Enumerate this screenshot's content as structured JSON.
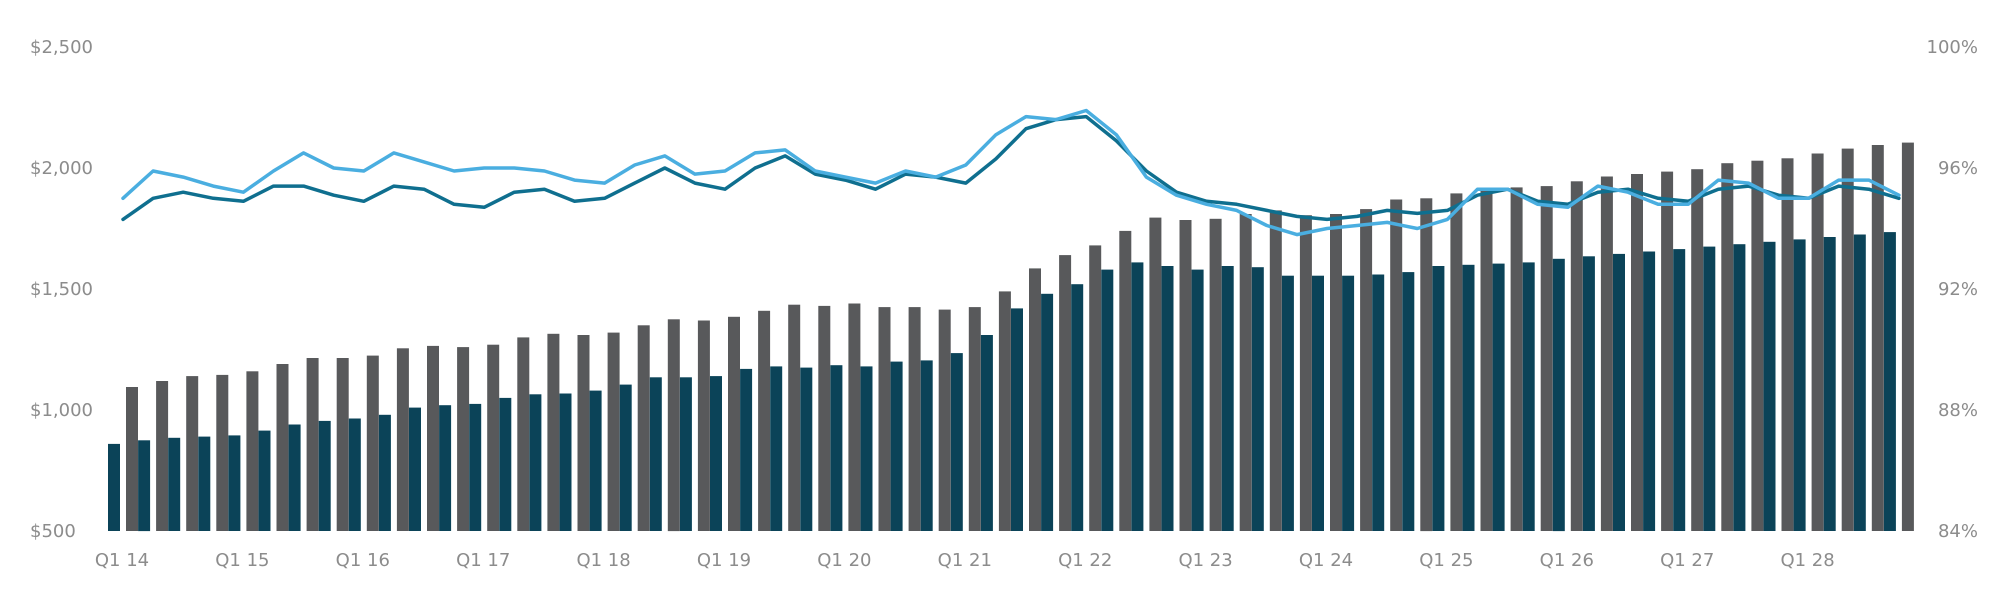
{
  "chart_data": {
    "type": "bar",
    "title": "",
    "xlabel": "",
    "ylabel_left": "",
    "ylabel_right": "",
    "grid": false,
    "legend": "none",
    "y_left": {
      "range": [
        500,
        2500
      ],
      "ticks": [
        "$500",
        "$1,000",
        "$1,500",
        "$2,000",
        "$2,500"
      ],
      "tick_values": [
        500,
        1000,
        1500,
        2000,
        2500
      ]
    },
    "y_right": {
      "range": [
        84,
        100
      ],
      "ticks": [
        "84%",
        "88%",
        "92%",
        "96%",
        "100%"
      ],
      "tick_values": [
        84,
        88,
        92,
        96,
        100
      ]
    },
    "x_tick_labels": [
      {
        "label": "Q1 14",
        "index": 0
      },
      {
        "label": "Q1 15",
        "index": 4
      },
      {
        "label": "Q1 16",
        "index": 8
      },
      {
        "label": "Q1 17",
        "index": 12
      },
      {
        "label": "Q1 18",
        "index": 16
      },
      {
        "label": "Q1 19",
        "index": 20
      },
      {
        "label": "Q1 20",
        "index": 24
      },
      {
        "label": "Q1 21",
        "index": 28
      },
      {
        "label": "Q1 22",
        "index": 32
      },
      {
        "label": "Q1 23",
        "index": 36
      },
      {
        "label": "Q1 24",
        "index": 40
      },
      {
        "label": "Q1 25",
        "index": 44
      },
      {
        "label": "Q1 26",
        "index": 48
      },
      {
        "label": "Q1 27",
        "index": 52
      },
      {
        "label": "Q1 28",
        "index": 56
      }
    ],
    "series": [
      {
        "kind": "bar",
        "axis": "left",
        "color": "#0b4358",
        "values": [
          860,
          875,
          885,
          890,
          895,
          915,
          940,
          955,
          965,
          980,
          1010,
          1020,
          1025,
          1050,
          1065,
          1068,
          1080,
          1105,
          1135,
          1135,
          1140,
          1170,
          1180,
          1175,
          1185,
          1180,
          1200,
          1205,
          1235,
          1310,
          1420,
          1480,
          1520,
          1580,
          1610,
          1595,
          1580,
          1595,
          1590,
          1555,
          1555,
          1555,
          1560,
          1570,
          1595,
          1600,
          1605,
          1610,
          1625,
          1635,
          1645,
          1655,
          1665,
          1675,
          1685,
          1695,
          1705,
          1715,
          1725,
          1735
        ]
      },
      {
        "kind": "bar",
        "axis": "left",
        "color": "#58595b",
        "values": [
          1095,
          1120,
          1140,
          1145,
          1160,
          1190,
          1215,
          1215,
          1225,
          1255,
          1265,
          1260,
          1270,
          1300,
          1315,
          1310,
          1320,
          1350,
          1375,
          1370,
          1385,
          1410,
          1435,
          1430,
          1440,
          1425,
          1425,
          1415,
          1425,
          1490,
          1585,
          1640,
          1680,
          1740,
          1795,
          1785,
          1790,
          1810,
          1825,
          1805,
          1810,
          1830,
          1870,
          1875,
          1895,
          1915,
          1920,
          1925,
          1945,
          1965,
          1975,
          1985,
          1995,
          2020,
          2030,
          2040,
          2060,
          2080,
          2095,
          2105
        ]
      },
      {
        "kind": "line",
        "axis": "right",
        "color": "#0f6f8f",
        "values": [
          94.3,
          95.0,
          95.2,
          95.0,
          94.9,
          95.4,
          95.4,
          95.1,
          94.9,
          95.4,
          95.3,
          94.8,
          94.7,
          95.2,
          95.3,
          94.9,
          95.0,
          95.5,
          96.0,
          95.5,
          95.3,
          96.0,
          96.4,
          95.8,
          95.6,
          95.3,
          95.8,
          95.7,
          95.5,
          96.3,
          97.3,
          97.6,
          97.7,
          96.9,
          95.9,
          95.2,
          94.9,
          94.8,
          94.6,
          94.4,
          94.3,
          94.4,
          94.6,
          94.5,
          94.6,
          95.1,
          95.3,
          94.9,
          94.8,
          95.2,
          95.3,
          95.0,
          94.9,
          95.3,
          95.4,
          95.1,
          95.0,
          95.4,
          95.3,
          95.0
        ]
      },
      {
        "kind": "line",
        "axis": "right",
        "color": "#4aaee0",
        "values": [
          95.0,
          95.9,
          95.7,
          95.4,
          95.2,
          95.9,
          96.5,
          96.0,
          95.9,
          96.5,
          96.2,
          95.9,
          96.0,
          96.0,
          95.9,
          95.6,
          95.5,
          96.1,
          96.4,
          95.8,
          95.9,
          96.5,
          96.6,
          95.9,
          95.7,
          95.5,
          95.9,
          95.7,
          96.1,
          97.1,
          97.7,
          97.6,
          97.9,
          97.1,
          95.7,
          95.1,
          94.8,
          94.6,
          94.1,
          93.8,
          94.0,
          94.1,
          94.2,
          94.0,
          94.3,
          95.3,
          95.3,
          94.8,
          94.7,
          95.4,
          95.2,
          94.8,
          94.8,
          95.6,
          95.5,
          95.0,
          95.0,
          95.6,
          95.6,
          95.1
        ]
      }
    ]
  }
}
